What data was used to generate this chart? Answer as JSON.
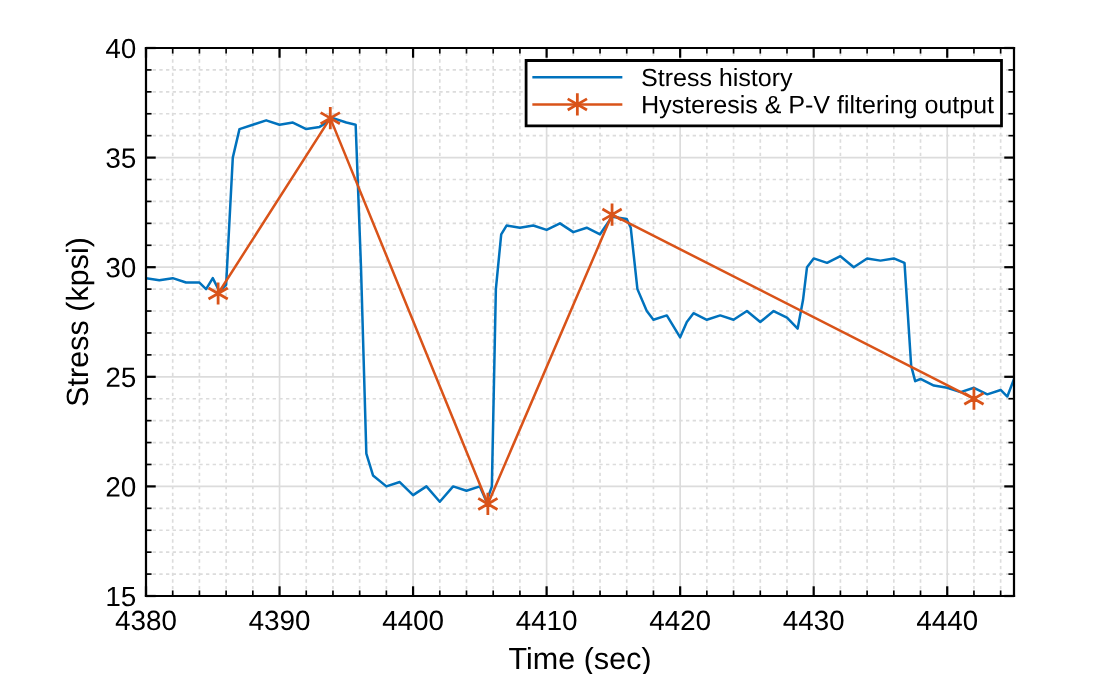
{
  "chart_data": {
    "type": "line",
    "xlabel": "Time (sec)",
    "ylabel": "Stress (kpsi)",
    "xlim": [
      4380,
      4445
    ],
    "xticks": [
      4380,
      4390,
      4400,
      4410,
      4420,
      4430,
      4440
    ],
    "ylim": [
      15,
      40
    ],
    "yticks": [
      15,
      20,
      25,
      30,
      35,
      40
    ],
    "grid": true,
    "legend": "top right",
    "series": [
      {
        "name": "Stress history",
        "color": "#0072bd",
        "marker": "none",
        "x": [
          4380,
          4381,
          4382,
          4383,
          4384,
          4384.5,
          4385,
          4385.5,
          4386,
          4386.5,
          4387,
          4388,
          4389,
          4390,
          4391,
          4392,
          4393,
          4394,
          4395,
          4395.7,
          4396.1,
          4396.5,
          4397,
          4398,
          4399,
          4400,
          4401,
          4402,
          4403,
          4404,
          4405,
          4405.5,
          4405.9,
          4406.2,
          4406.6,
          4407,
          4408,
          4409,
          4410,
          4411,
          4412,
          4413,
          4414,
          4414.9,
          4416,
          4416.3,
          4416.8,
          4417.5,
          4418,
          4419,
          4420,
          4420.5,
          4421,
          4422,
          4423,
          4424,
          4425,
          4426,
          4427,
          4428,
          4428.8,
          4429.2,
          4429.5,
          4430,
          4431,
          4432,
          4433,
          4434,
          4435,
          4436,
          4436.8,
          4437.3,
          4437.6,
          4438,
          4439,
          4440,
          4441,
          4442,
          4443,
          4444,
          4444.5,
          4445
        ],
        "values": [
          29.5,
          29.4,
          29.5,
          29.3,
          29.3,
          29.0,
          29.5,
          28.9,
          29.2,
          35.0,
          36.3,
          36.5,
          36.7,
          36.5,
          36.6,
          36.3,
          36.4,
          36.8,
          36.6,
          36.5,
          30.0,
          21.5,
          20.5,
          20.0,
          20.2,
          19.6,
          20.0,
          19.3,
          20.0,
          19.8,
          20.0,
          19.3,
          20.0,
          29.0,
          31.5,
          31.9,
          31.8,
          31.9,
          31.7,
          32.0,
          31.6,
          31.8,
          31.5,
          32.3,
          32.2,
          31.8,
          29.0,
          28.0,
          27.6,
          27.8,
          26.8,
          27.5,
          27.9,
          27.6,
          27.8,
          27.6,
          28.0,
          27.5,
          28.0,
          27.7,
          27.2,
          28.5,
          30.0,
          30.4,
          30.2,
          30.5,
          30.0,
          30.4,
          30.3,
          30.4,
          30.2,
          25.5,
          24.8,
          24.9,
          24.6,
          24.5,
          24.3,
          24.5,
          24.2,
          24.4,
          24.1,
          24.9
        ]
      },
      {
        "name": "Hysteresis & P-V filtering output",
        "color": "#d95319",
        "marker": "cross",
        "x": [
          4385.4,
          4393.8,
          4405.6,
          4414.9,
          4442.0
        ],
        "values": [
          28.8,
          36.8,
          19.2,
          32.4,
          24.0
        ]
      }
    ]
  }
}
